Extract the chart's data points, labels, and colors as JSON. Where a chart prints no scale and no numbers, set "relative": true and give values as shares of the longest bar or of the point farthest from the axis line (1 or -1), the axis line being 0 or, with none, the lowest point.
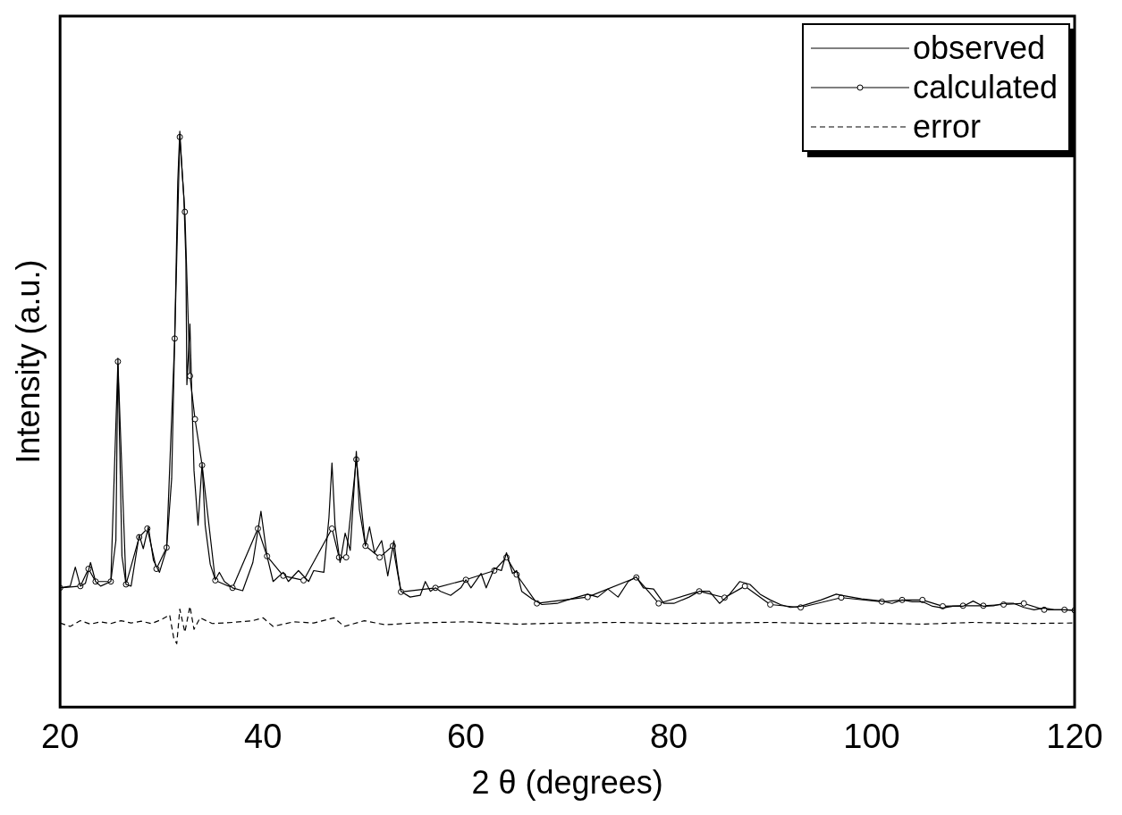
{
  "chart_data": {
    "type": "line",
    "xlabel": "2 θ (degrees)",
    "ylabel": "Intensity (a.u.)",
    "relative": true,
    "xlim": [
      20,
      120
    ],
    "xticks": [
      20,
      40,
      60,
      80,
      100,
      120
    ],
    "legend": "top right",
    "grid": false,
    "series": [
      {
        "name": "observed",
        "color": "#000000",
        "marker": "none",
        "line_style": "solid",
        "x": [
          20,
          21,
          21.5,
          22,
          22.5,
          23,
          23.5,
          24,
          25,
          25.5,
          25.7,
          26.1,
          26.5,
          27,
          27.8,
          28.2,
          28.7,
          29.2,
          29.8,
          30.5,
          31,
          31.3,
          31.6,
          31.8,
          32,
          32.2,
          32.4,
          32.5,
          32.8,
          33,
          33.2,
          33.6,
          34,
          34.3,
          34.8,
          35.3,
          35.7,
          36.2,
          37,
          38,
          39,
          39.8,
          40.4,
          41,
          42,
          42.5,
          43.5,
          44.5,
          45,
          46,
          46.5,
          46.8,
          47.1,
          47.6,
          48.1,
          48.6,
          49.2,
          49.5,
          50.1,
          50.5,
          51,
          51.7,
          52.3,
          52.9,
          53.3,
          53.6,
          54.5,
          55.5,
          56,
          56.5,
          57,
          57.5,
          58.5,
          59.5,
          60,
          60.5,
          61.5,
          62,
          62.8,
          63.5,
          64,
          64.6,
          65,
          65.5,
          66.5,
          67.5,
          69,
          70,
          71,
          72,
          73,
          74,
          75,
          76,
          76.8,
          77.5,
          78.5,
          79.5,
          80.5,
          82,
          83,
          84,
          85,
          86,
          87,
          88,
          89,
          90,
          91,
          92,
          93,
          95,
          96.5,
          97,
          98,
          99,
          100,
          101,
          102,
          103,
          104,
          105,
          106,
          107,
          108,
          109,
          110,
          111,
          112,
          113,
          114,
          115,
          116,
          117,
          118,
          119,
          120
        ],
        "values": [
          0.207,
          0.21,
          0.243,
          0.21,
          0.215,
          0.251,
          0.218,
          0.21,
          0.218,
          0.289,
          0.606,
          0.262,
          0.213,
          0.21,
          0.299,
          0.275,
          0.313,
          0.255,
          0.234,
          0.275,
          0.397,
          0.641,
          0.912,
          1,
          0.939,
          0.885,
          0.776,
          0.56,
          0.665,
          0.533,
          0.411,
          0.316,
          0.424,
          0.316,
          0.248,
          0.221,
          0.234,
          0.218,
          0.207,
          0.202,
          0.251,
          0.34,
          0.262,
          0.218,
          0.234,
          0.218,
          0.237,
          0.218,
          0.237,
          0.234,
          0.329,
          0.424,
          0.316,
          0.251,
          0.302,
          0.272,
          0.444,
          0.343,
          0.28,
          0.313,
          0.268,
          0.289,
          0.228,
          0.289,
          0.234,
          0.201,
          0.191,
          0.194,
          0.218,
          0.201,
          0.207,
          0.201,
          0.194,
          0.207,
          0.221,
          0.207,
          0.232,
          0.207,
          0.241,
          0.237,
          0.268,
          0.232,
          0.237,
          0.201,
          0.188,
          0.178,
          0.18,
          0.186,
          0.191,
          0.196,
          0.191,
          0.205,
          0.191,
          0.218,
          0.226,
          0.207,
          0.205,
          0.18,
          0.18,
          0.191,
          0.201,
          0.201,
          0.18,
          0.196,
          0.218,
          0.213,
          0.196,
          0.186,
          0.178,
          0.173,
          0.175,
          0.186,
          0.196,
          0.194,
          0.191,
          0.188,
          0.186,
          0.184,
          0.18,
          0.186,
          0.183,
          0.183,
          0.175,
          0.172,
          0.175,
          0.175,
          0.184,
          0.175,
          0.176,
          0.18,
          0.18,
          0.173,
          0.169,
          0.172,
          0.169,
          0.169,
          0.168
        ]
      },
      {
        "name": "calculated",
        "color": "#000000",
        "marker": "circle",
        "line_style": "solid",
        "x": [
          20,
          22,
          22.8,
          23.5,
          25,
          25.7,
          26.5,
          27.8,
          28.6,
          29.5,
          30.5,
          31.3,
          31.8,
          32.3,
          32.8,
          33.3,
          34,
          35.3,
          37,
          39.5,
          40.4,
          42,
          44,
          46.8,
          47.5,
          48.2,
          49.2,
          50.1,
          51.5,
          52.8,
          53.6,
          57,
          60,
          62.8,
          64,
          65,
          67,
          72,
          76.8,
          79,
          83,
          85.5,
          87.5,
          90,
          93,
          97,
          101,
          103,
          105,
          107,
          109,
          111,
          113,
          115,
          117,
          119,
          120
        ],
        "values": [
          0.207,
          0.21,
          0.24,
          0.218,
          0.218,
          0.6,
          0.213,
          0.295,
          0.31,
          0.24,
          0.277,
          0.64,
          0.99,
          0.86,
          0.575,
          0.5,
          0.42,
          0.22,
          0.207,
          0.31,
          0.262,
          0.228,
          0.22,
          0.31,
          0.26,
          0.26,
          0.43,
          0.28,
          0.26,
          0.28,
          0.2,
          0.207,
          0.221,
          0.237,
          0.26,
          0.23,
          0.18,
          0.191,
          0.225,
          0.18,
          0.201,
          0.19,
          0.21,
          0.178,
          0.173,
          0.19,
          0.183,
          0.186,
          0.186,
          0.175,
          0.176,
          0.176,
          0.178,
          0.18,
          0.169,
          0.169,
          0.168
        ]
      },
      {
        "name": "error",
        "color": "#000000",
        "marker": "none",
        "line_style": "dashed",
        "x": [
          20,
          21,
          22,
          23,
          24,
          25,
          26,
          27,
          28,
          29,
          30,
          30.8,
          31.2,
          31.5,
          31.8,
          32.3,
          32.8,
          33.2,
          33.8,
          35,
          37,
          39,
          40,
          41,
          43,
          45,
          47,
          48,
          50,
          52,
          55,
          60,
          65,
          70,
          75,
          80,
          85,
          90,
          95,
          100,
          105,
          110,
          115,
          120
        ],
        "values": [
          0.146,
          0.14,
          0.15,
          0.144,
          0.148,
          0.145,
          0.15,
          0.146,
          0.149,
          0.145,
          0.152,
          0.16,
          0.12,
          0.11,
          0.17,
          0.13,
          0.175,
          0.135,
          0.155,
          0.145,
          0.147,
          0.15,
          0.155,
          0.14,
          0.148,
          0.146,
          0.155,
          0.14,
          0.15,
          0.143,
          0.146,
          0.148,
          0.144,
          0.146,
          0.147,
          0.145,
          0.146,
          0.147,
          0.145,
          0.146,
          0.144,
          0.147,
          0.145,
          0.146
        ]
      }
    ]
  }
}
